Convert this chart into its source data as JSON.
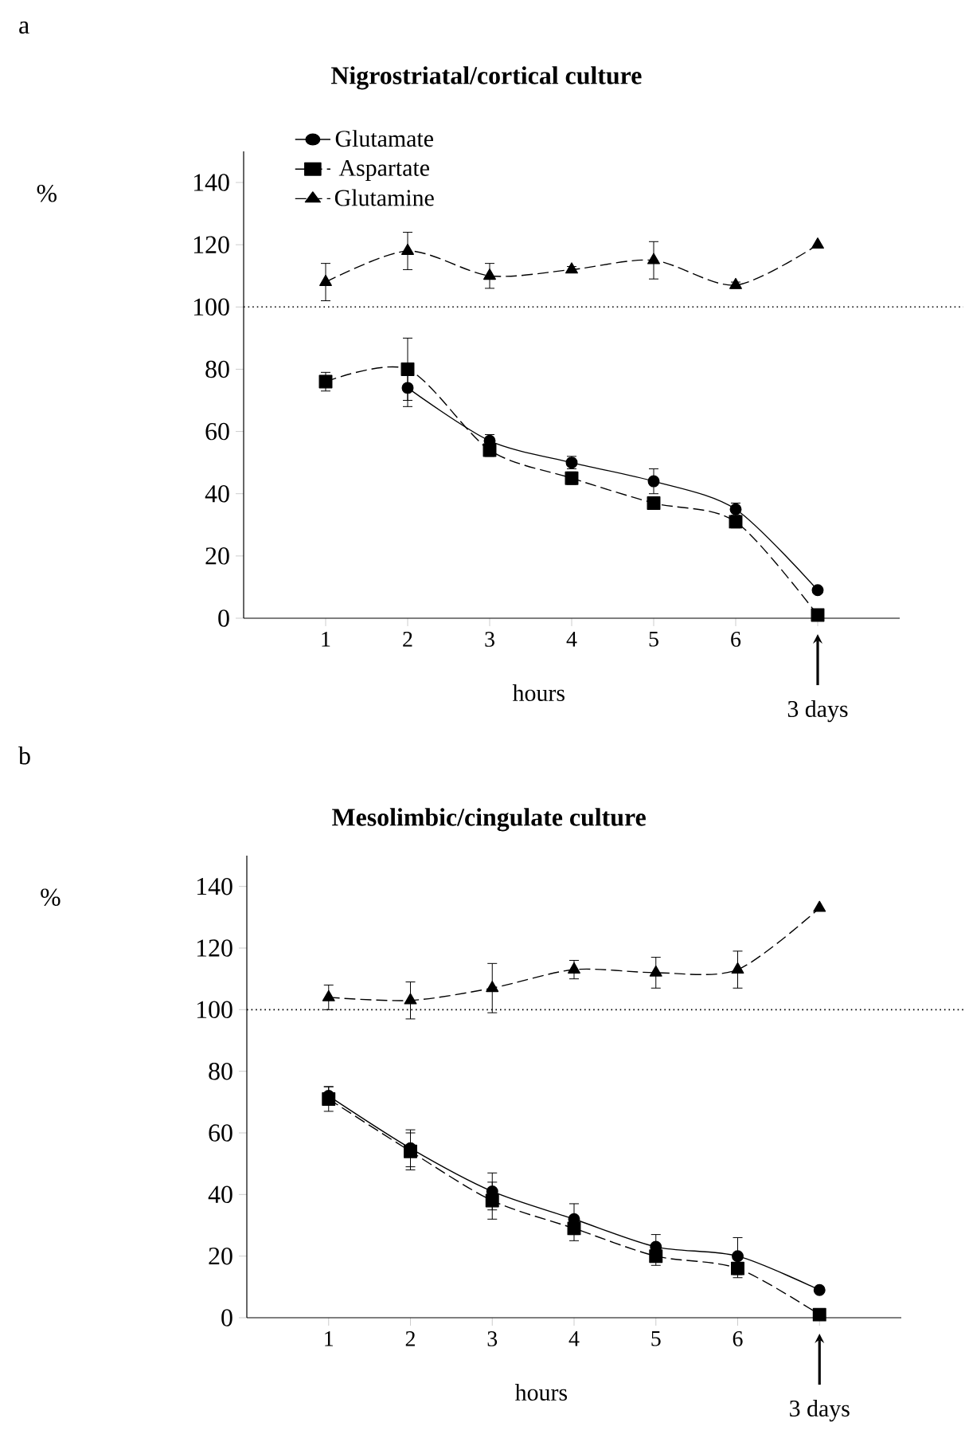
{
  "chart_data": [
    {
      "type": "line",
      "title": "Nigrostriatal/cortical culture",
      "xlabel": "hours",
      "ylabel": "%",
      "xlim": [
        0,
        8
      ],
      "ylim": [
        0,
        150
      ],
      "xticks": [
        1,
        2,
        3,
        4,
        5,
        6,
        {
          "value": 7,
          "label": null
        }
      ],
      "yticks": [
        0,
        20,
        40,
        60,
        80,
        100,
        120,
        140
      ],
      "legend": "top left",
      "x": [
        1,
        2,
        3,
        4,
        5,
        6,
        7
      ],
      "series": [
        {
          "name": "Glutamate",
          "color": "#000000",
          "marker": "circle",
          "line_style": "solid",
          "values": [
            null,
            74,
            57,
            50,
            44,
            35,
            9
          ],
          "errors": [
            null,
            6,
            2,
            2,
            4,
            2,
            null
          ]
        },
        {
          "name": "Aspartate",
          "color": "#000000",
          "marker": "square",
          "line_style": "dashed",
          "values": [
            76,
            80,
            54,
            45,
            37,
            31,
            1
          ],
          "errors": [
            3,
            10,
            2,
            2,
            2,
            2,
            null
          ]
        },
        {
          "name": "Glutamine",
          "color": "#000000",
          "marker": "triangle",
          "line_style": "dashed",
          "values": [
            108,
            118,
            110,
            112,
            115,
            107,
            120
          ],
          "errors": [
            6,
            6,
            4,
            1,
            6,
            1,
            null
          ]
        }
      ],
      "ref_lines": [
        {
          "axis": "y",
          "value": 100,
          "line_style": "dotted"
        }
      ],
      "annotations": [
        "a",
        "3 days"
      ]
    },
    {
      "type": "line",
      "title": "Mesolimbic/cingulate culture",
      "xlabel": "hours",
      "ylabel": "%",
      "xlim": [
        0,
        8
      ],
      "ylim": [
        0,
        150
      ],
      "xticks": [
        1,
        2,
        3,
        4,
        5,
        6,
        {
          "value": 7,
          "label": null
        }
      ],
      "yticks": [
        0,
        20,
        40,
        60,
        80,
        100,
        120,
        140
      ],
      "series": [
        {
          "color": "#000000",
          "marker": "circle",
          "line_style": "solid",
          "x": [
            1,
            2,
            3,
            4,
            5,
            6,
            7
          ],
          "values": [
            72,
            55,
            41,
            32,
            23,
            20,
            9
          ],
          "errors": [
            3,
            6,
            6,
            5,
            4,
            6,
            null
          ]
        },
        {
          "color": "#000000",
          "marker": "square",
          "line_style": "dashed",
          "x": [
            1,
            2,
            3,
            4,
            5,
            6,
            7
          ],
          "values": [
            71,
            54,
            38,
            29,
            20,
            16,
            1
          ],
          "errors": [
            4,
            6,
            6,
            4,
            3,
            3,
            null
          ]
        },
        {
          "color": "#000000",
          "marker": "triangle",
          "line_style": "dashed",
          "x": [
            1,
            2,
            3,
            4,
            5,
            6,
            7
          ],
          "values": [
            104,
            103,
            107,
            113,
            112,
            113,
            133
          ],
          "errors": [
            4,
            6,
            8,
            3,
            5,
            6,
            null
          ]
        }
      ],
      "ref_lines": [
        {
          "axis": "y",
          "value": 100,
          "line_style": "dotted"
        }
      ],
      "annotations": [
        "b",
        "3 days"
      ]
    }
  ]
}
